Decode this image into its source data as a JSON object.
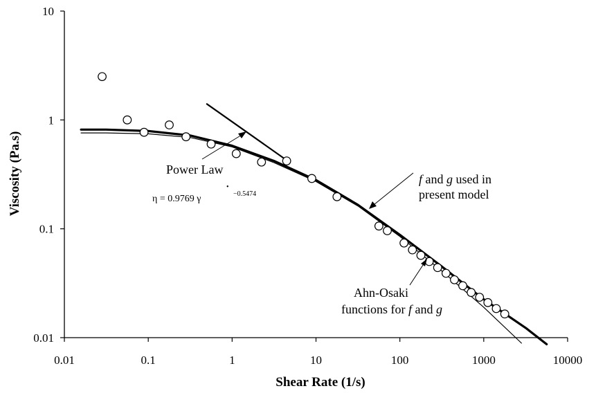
{
  "chart_data": {
    "type": "scatter",
    "xlabel": "Shear Rate (1/s)",
    "ylabel": "Viscosity (Pa.s)",
    "xscale": "log",
    "yscale": "log",
    "xlim": [
      0.01,
      10000
    ],
    "ylim": [
      0.01,
      10
    ],
    "x_ticks": [
      "0.01",
      "0.1",
      "1",
      "10",
      "100",
      "1000",
      "10000"
    ],
    "y_ticks": [
      "0.01",
      "0.1",
      "1",
      "10"
    ],
    "grid": false,
    "legend": "none",
    "series": [
      {
        "style": "markers (open circles)",
        "x": [
          0.0282,
          0.0562,
          0.0891,
          0.178,
          0.282,
          0.562,
          1.12,
          2.24,
          4.47,
          8.91,
          17.8,
          56.2,
          70.8,
          112,
          141,
          178,
          224,
          282,
          355,
          447,
          562,
          708,
          891,
          1120,
          1410,
          1780
        ],
        "y": [
          2.5,
          1.0,
          0.77,
          0.9,
          0.7,
          0.6,
          0.49,
          0.41,
          0.42,
          0.29,
          0.197,
          0.106,
          0.096,
          0.074,
          0.064,
          0.057,
          0.05,
          0.044,
          0.039,
          0.034,
          0.03,
          0.026,
          0.0235,
          0.021,
          0.0185,
          0.0165
        ]
      },
      {
        "style": "thick line",
        "x": [
          0.0158,
          0.0316,
          0.1,
          0.316,
          1,
          3.16,
          10,
          31.6,
          100,
          316,
          1000,
          3162,
          5620
        ],
        "y": [
          0.815,
          0.815,
          0.79,
          0.72,
          0.58,
          0.42,
          0.28,
          0.166,
          0.088,
          0.045,
          0.0225,
          0.0123,
          0.0087
        ]
      },
      {
        "style": "thin line",
        "x": [
          0.0158,
          0.0316,
          0.1,
          0.316,
          1,
          3.16,
          10,
          31.6,
          100,
          316,
          1000,
          2820
        ],
        "y": [
          0.76,
          0.76,
          0.745,
          0.69,
          0.565,
          0.405,
          0.272,
          0.162,
          0.085,
          0.041,
          0.019,
          0.0089
        ]
      },
      {
        "style": "power law line",
        "x": [
          0.5,
          4.6
        ],
        "y": [
          1.4,
          0.42
        ]
      }
    ],
    "annotations": {
      "power_law": "Power Law",
      "formula": {
        "prefix": "η = 0.9769 ",
        "gamma": "γ",
        "dot": "•",
        "exponent": "−0.5474"
      },
      "present_model": {
        "line1_italic_f": "f",
        "line1_mid": " and ",
        "line1_italic_g": "g",
        "line1_end": " used in",
        "line2": "present model"
      },
      "ahn_osaki": {
        "line1": "Ahn-Osaki",
        "line2_start": "functions for ",
        "line2_italic_f": "f",
        "line2_mid": " and ",
        "line2_italic_g": "g"
      }
    }
  }
}
